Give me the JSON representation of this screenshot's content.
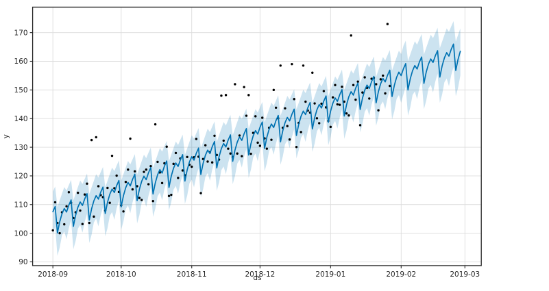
{
  "chart_data": {
    "type": "line",
    "title": "",
    "xlabel": "ds",
    "ylabel": "y",
    "legend": "none",
    "grid": true,
    "components": [
      "observations-scatter",
      "forecast-line",
      "uncertainty-band"
    ],
    "start_date": "2018-09-01",
    "xlim_days": [
      -8.9,
      188.2
    ],
    "ylim": [
      88.7,
      178.9
    ],
    "y_ticks": [
      90,
      100,
      110,
      120,
      130,
      140,
      150,
      160,
      170
    ],
    "x_ticks": [
      {
        "day": 0,
        "label": "2018-09"
      },
      {
        "day": 30,
        "label": "2018-10"
      },
      {
        "day": 61,
        "label": "2018-11"
      },
      {
        "day": 91,
        "label": "2018-12"
      },
      {
        "day": 122,
        "label": "2019-01"
      },
      {
        "day": 153,
        "label": "2019-02"
      },
      {
        "day": 181,
        "label": "2019-03"
      }
    ],
    "colors": {
      "line": "#0072B2",
      "band": "rgba(0,114,178,0.2)",
      "points": "#000000",
      "grid": "#dcdcdc",
      "spine": "#262626",
      "tick_label": "#262626"
    },
    "series": {
      "yhat": [
        107.5,
        109.3,
        100.1,
        104.0,
        106.8,
        108.6,
        107.4,
        109.8,
        111.6,
        102.4,
        106.3,
        109.1,
        110.9,
        109.7,
        112.0,
        113.8,
        104.6,
        108.5,
        111.3,
        113.1,
        111.9,
        114.3,
        116.1,
        106.9,
        110.8,
        113.6,
        115.4,
        114.2,
        116.6,
        118.4,
        109.2,
        113.1,
        115.9,
        117.7,
        116.5,
        118.8,
        120.6,
        111.4,
        115.3,
        118.1,
        119.9,
        118.7,
        121.1,
        122.9,
        113.7,
        117.6,
        120.4,
        122.2,
        121.0,
        123.4,
        125.2,
        116.0,
        119.9,
        122.7,
        124.5,
        123.3,
        125.6,
        127.4,
        118.2,
        122.1,
        124.9,
        126.7,
        125.5,
        127.9,
        129.7,
        120.5,
        124.4,
        127.2,
        129.0,
        127.8,
        130.2,
        132.0,
        122.8,
        126.7,
        129.5,
        131.3,
        130.1,
        132.5,
        134.3,
        125.1,
        129.0,
        131.8,
        133.6,
        132.4,
        134.7,
        136.5,
        127.3,
        131.2,
        134.0,
        135.8,
        134.6,
        137.0,
        138.8,
        129.6,
        133.5,
        136.3,
        138.1,
        136.9,
        139.3,
        141.1,
        131.9,
        135.8,
        138.6,
        140.4,
        139.2,
        141.5,
        143.3,
        134.1,
        138.0,
        140.8,
        142.6,
        141.4,
        143.8,
        145.6,
        136.4,
        140.3,
        143.1,
        144.9,
        143.7,
        146.1,
        147.9,
        138.7,
        142.6,
        145.4,
        147.2,
        146.0,
        148.3,
        150.1,
        140.9,
        144.8,
        147.6,
        149.4,
        148.2,
        150.6,
        152.4,
        143.2,
        147.1,
        149.9,
        151.7,
        150.5,
        152.9,
        154.7,
        145.5,
        149.4,
        152.2,
        154.0,
        152.8,
        155.1,
        156.9,
        147.7,
        151.6,
        154.4,
        156.2,
        155.0,
        157.4,
        159.2,
        150.0,
        153.9,
        156.7,
        158.5,
        157.3,
        159.7,
        161.5,
        152.3,
        156.2,
        159.0,
        160.8,
        159.6,
        161.9,
        163.7,
        154.5,
        158.4,
        161.2,
        163.0,
        161.8,
        164.2,
        166.0,
        156.8,
        160.7,
        163.5
      ],
      "yhat_upper": [
        114.5,
        116.3,
        109.2,
        111.5,
        113.8,
        116.1,
        114.9,
        116.8,
        118.6,
        111.5,
        113.8,
        116.1,
        118.4,
        117.2,
        119.0,
        120.8,
        113.7,
        116.0,
        118.3,
        120.6,
        119.4,
        121.3,
        123.1,
        116.0,
        118.3,
        120.6,
        122.9,
        121.7,
        123.6,
        125.4,
        118.3,
        120.6,
        122.9,
        125.2,
        124.0,
        125.8,
        127.6,
        120.5,
        122.8,
        125.1,
        127.4,
        126.2,
        128.1,
        129.9,
        122.8,
        125.1,
        127.4,
        129.7,
        128.5,
        130.4,
        132.2,
        125.1,
        127.4,
        129.7,
        132.0,
        130.8,
        132.6,
        134.4,
        127.3,
        129.6,
        131.9,
        134.2,
        133.0,
        134.9,
        136.7,
        129.6,
        131.9,
        134.2,
        136.5,
        135.3,
        137.2,
        139.0,
        131.9,
        134.2,
        136.5,
        138.8,
        137.6,
        139.5,
        141.3,
        134.2,
        136.5,
        138.8,
        141.1,
        139.9,
        141.7,
        143.5,
        136.4,
        138.7,
        141.0,
        143.3,
        142.1,
        144.0,
        145.8,
        138.7,
        141.0,
        143.3,
        145.6,
        144.4,
        146.3,
        148.1,
        141.0,
        143.3,
        145.6,
        147.9,
        146.7,
        148.5,
        150.3,
        143.2,
        145.5,
        147.8,
        150.1,
        148.9,
        150.8,
        152.6,
        145.5,
        147.8,
        150.1,
        152.4,
        151.2,
        153.1,
        154.9,
        147.8,
        150.1,
        152.4,
        154.7,
        153.5,
        155.3,
        157.1,
        150.0,
        152.3,
        154.6,
        156.9,
        155.7,
        157.6,
        159.4,
        152.3,
        154.6,
        156.9,
        159.2,
        158.0,
        159.9,
        161.7,
        154.6,
        156.9,
        159.2,
        161.5,
        160.3,
        162.1,
        163.9,
        156.8,
        159.1,
        161.4,
        163.7,
        162.5,
        165.4,
        167.2,
        160.1,
        162.4,
        164.7,
        167.0,
        165.8,
        167.7,
        169.5,
        162.4,
        164.7,
        167.0,
        169.3,
        168.1,
        169.9,
        171.7,
        164.6,
        166.9,
        169.2,
        171.5,
        170.3,
        172.2,
        174.0,
        166.9,
        169.2,
        171.5
      ],
      "yhat_lower": [
        99.5,
        102.3,
        92.1,
        95.0,
        99.3,
        100.6,
        97.9,
        101.8,
        104.6,
        94.4,
        97.3,
        101.6,
        102.9,
        100.2,
        104.0,
        106.8,
        96.6,
        99.5,
        103.8,
        105.1,
        102.4,
        106.3,
        109.1,
        98.9,
        101.8,
        106.1,
        107.4,
        104.7,
        108.6,
        111.4,
        101.2,
        104.1,
        108.4,
        109.7,
        107.0,
        110.8,
        113.6,
        103.4,
        106.3,
        110.6,
        111.9,
        109.2,
        113.1,
        115.9,
        105.7,
        108.6,
        112.9,
        114.2,
        111.5,
        115.4,
        118.2,
        108.0,
        110.9,
        115.2,
        116.5,
        113.8,
        117.6,
        120.4,
        110.2,
        113.1,
        117.4,
        118.7,
        116.0,
        119.9,
        122.7,
        112.5,
        115.4,
        119.7,
        121.0,
        118.3,
        122.2,
        125.0,
        114.8,
        117.7,
        122.0,
        123.3,
        120.6,
        124.5,
        127.3,
        117.1,
        120.0,
        124.3,
        125.6,
        122.9,
        126.7,
        129.5,
        119.3,
        122.2,
        126.5,
        127.8,
        125.1,
        129.0,
        131.8,
        121.6,
        124.5,
        128.8,
        130.1,
        127.4,
        131.3,
        134.1,
        123.9,
        126.8,
        131.1,
        132.4,
        129.7,
        133.5,
        136.3,
        126.1,
        129.0,
        133.3,
        134.6,
        131.9,
        135.8,
        138.6,
        128.4,
        131.3,
        135.6,
        136.9,
        134.2,
        138.1,
        140.9,
        130.7,
        133.6,
        137.9,
        139.2,
        136.5,
        140.3,
        143.1,
        132.9,
        135.8,
        140.1,
        141.4,
        138.7,
        142.6,
        145.4,
        135.2,
        138.1,
        142.4,
        143.7,
        141.0,
        144.9,
        147.7,
        137.5,
        140.4,
        144.7,
        146.0,
        143.3,
        147.1,
        149.9,
        139.7,
        142.6,
        146.9,
        148.2,
        145.5,
        148.4,
        151.2,
        141.0,
        143.9,
        148.2,
        149.5,
        146.8,
        150.7,
        153.5,
        143.3,
        146.2,
        150.5,
        151.8,
        149.1,
        152.9,
        155.7,
        145.5,
        148.4,
        152.7,
        154.0,
        151.3,
        155.2,
        158.0,
        147.8,
        150.7,
        155.0
      ]
    },
    "observations": {
      "start_day": 0,
      "last_observed_day": 148,
      "values": [
        101.0,
        110.8,
        103.6,
        100.0,
        107.3,
        103.1,
        109.4,
        114.3,
        110.6,
        105.3,
        107.3,
        114.1,
        107.9,
        103.2,
        113.5,
        117.3,
        103.6,
        132.5,
        105.8,
        133.5,
        116.4,
        113.3,
        112.6,
        107.9,
        115.8,
        110.6,
        127.0,
        115.7,
        120.1,
        114.4,
        109.7,
        107.6,
        117.9,
        122.2,
        133.0,
        115.3,
        121.6,
        116.4,
        112.3,
        111.6,
        121.4,
        122.2,
        117.1,
        123.4,
        111.2,
        138.0,
        124.9,
        121.2,
        117.5,
        124.4,
        130.2,
        113.0,
        113.4,
        124.2,
        128.0,
        119.3,
        126.1,
        121.9,
        120.2,
        126.6,
        123.9,
        123.2,
        126.5,
        132.9,
        126.7,
        114.0,
        125.9,
        130.7,
        125.0,
        128.3,
        124.7,
        134.0,
        127.3,
        125.7,
        148.0,
        132.3,
        148.2,
        129.5,
        127.8,
        126.6,
        152.0,
        127.8,
        134.1,
        126.9,
        151.0,
        141.0,
        148.2,
        127.7,
        135.0,
        140.8,
        131.6,
        130.5,
        140.3,
        133.1,
        129.5,
        136.8,
        132.6,
        150.0,
        143.8,
        140.1,
        158.5,
        136.8,
        143.6,
        137.4,
        132.7,
        159.0,
        146.8,
        130.1,
        138.5,
        135.3,
        158.5,
        145.9,
        142.8,
        142.1,
        156.0,
        145.3,
        140.1,
        138.4,
        145.2,
        149.6,
        143.9,
        139.2,
        137.1,
        147.4,
        151.7,
        145.0,
        144.8,
        151.1,
        145.9,
        141.8,
        141.1,
        169.0,
        151.7,
        146.6,
        152.9,
        137.7,
        149.1,
        154.4,
        150.7,
        147.0,
        153.9,
        154.2,
        152.0,
        142.9,
        153.7,
        155.0,
        148.8,
        173.0,
        151.4
      ]
    }
  }
}
